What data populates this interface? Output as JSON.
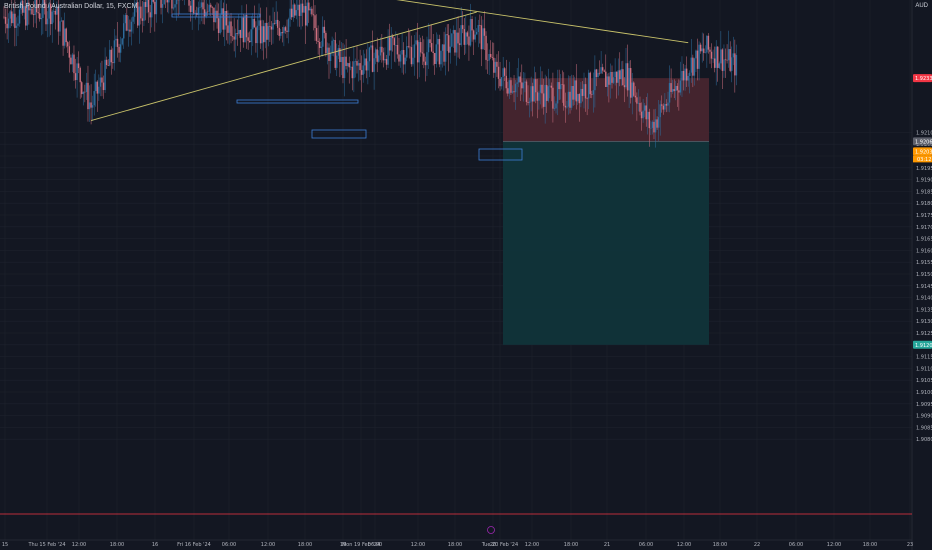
{
  "header": {
    "symbol_title": "British Pound / Australian Dollar, 15, FXCM",
    "scale_mode": "AUD"
  },
  "colors": {
    "background": "#131722",
    "grid": "#1e222d",
    "candle_up": "#2f6fa0",
    "candle_down": "#d07080",
    "trendline": "#c8c26a",
    "level": "#3d7fd6",
    "stop_zone": "#4a2630",
    "target_zone": "#10343a",
    "price_tag_red": "#f23645",
    "price_tag_orange": "#ff9800",
    "price_tag_teal": "#26a69a",
    "bottom_line": "#f23645"
  },
  "chart_data": {
    "type": "candlestick",
    "ylim": [
      1.9175,
      1.9275
    ],
    "y_ticks": [
      "1.92100",
      "1.92050",
      "1.92000",
      "1.91950",
      "1.91900",
      "1.91850",
      "1.91800",
      "1.91750",
      "1.91700",
      "1.91650",
      "1.91600",
      "1.91550",
      "1.91500",
      "1.91450",
      "1.91400",
      "1.91350",
      "1.91300",
      "1.91250",
      "1.91200",
      "1.91150",
      "1.91100",
      "1.91050",
      "1.91000",
      "1.90950",
      "1.90900",
      "1.90850",
      "1.90800"
    ],
    "x_ticks": [
      "15",
      "Thu 15 Feb '24",
      "12:00",
      "18:00",
      "16",
      "Fri 16 Feb '24",
      "06:00",
      "12:00",
      "18:00",
      "19",
      "Mon 19 Feb '24",
      "06:00",
      "12:00",
      "18:00",
      "20",
      "Tue 20 Feb '24",
      "12:00",
      "18:00",
      "21",
      "06:00",
      "12:00",
      "18:00",
      "22",
      "06:00",
      "12:00",
      "18:00",
      "23"
    ],
    "price_labels": {
      "stop": "1.92330",
      "entry": "1.92062",
      "current": "1.92038",
      "countdown": "03:12",
      "target": "1.91200"
    },
    "position": {
      "type": "short",
      "entry": 1.92062,
      "stop": 1.9233,
      "target": 1.912
    },
    "trendlines": [
      {
        "from": [
          14,
          1.9215
        ],
        "to": [
          76,
          1.9261
        ]
      },
      {
        "from": [
          51,
          1.9271
        ],
        "to": [
          110,
          1.9248
        ]
      }
    ],
    "levels": [
      {
        "price": 1.927,
        "from": 31,
        "to": 50
      },
      {
        "price": 1.9248,
        "from": 41,
        "to": 73
      },
      {
        "price": 1.9245,
        "from": 63,
        "to": 74
      },
      {
        "price": 1.9243,
        "from": 54,
        "to": 79
      }
    ],
    "grid": true,
    "legend": "none"
  }
}
